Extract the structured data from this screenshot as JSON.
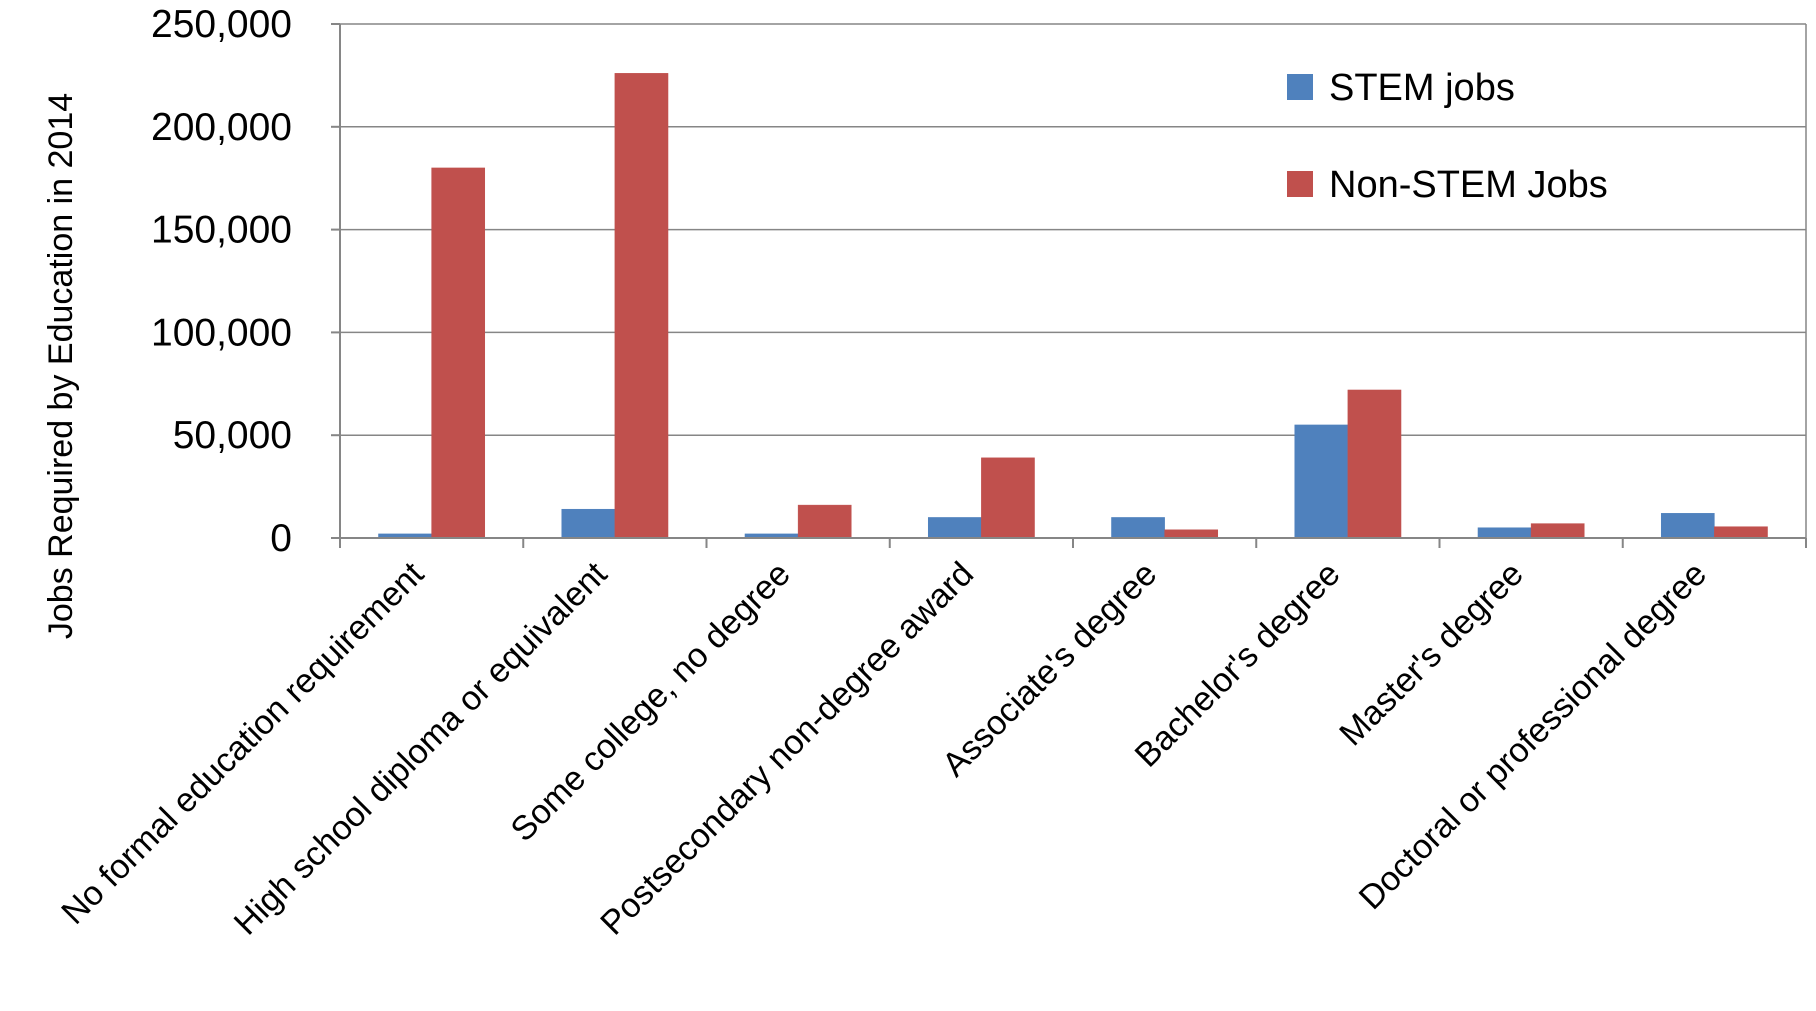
{
  "chart_data": {
    "type": "bar",
    "title": "",
    "xlabel": "",
    "ylabel": "Jobs Required by Education in 2014",
    "ylim": [
      0,
      250000
    ],
    "yticks": [
      0,
      50000,
      100000,
      150000,
      200000,
      250000
    ],
    "ytick_labels": [
      "0",
      "50,000",
      "100,000",
      "150,000",
      "200,000",
      "250,000"
    ],
    "grid": true,
    "legend_position": "top-right",
    "categories": [
      "No formal education requirement",
      "High school diploma or equivalent",
      "Some college, no degree",
      "Postsecondary non-degree award",
      "Associate's degree",
      "Bachelor's degree",
      "Master's degree",
      "Doctoral or professional degree"
    ],
    "series": [
      {
        "name": "STEM jobs",
        "color": "#4F81BD",
        "values": [
          2000,
          14000,
          2000,
          10000,
          10000,
          55000,
          5000,
          12000
        ]
      },
      {
        "name": "Non-STEM Jobs",
        "color": "#C0504D",
        "values": [
          180000,
          226000,
          16000,
          39000,
          4000,
          72000,
          7000,
          5500
        ]
      }
    ]
  }
}
